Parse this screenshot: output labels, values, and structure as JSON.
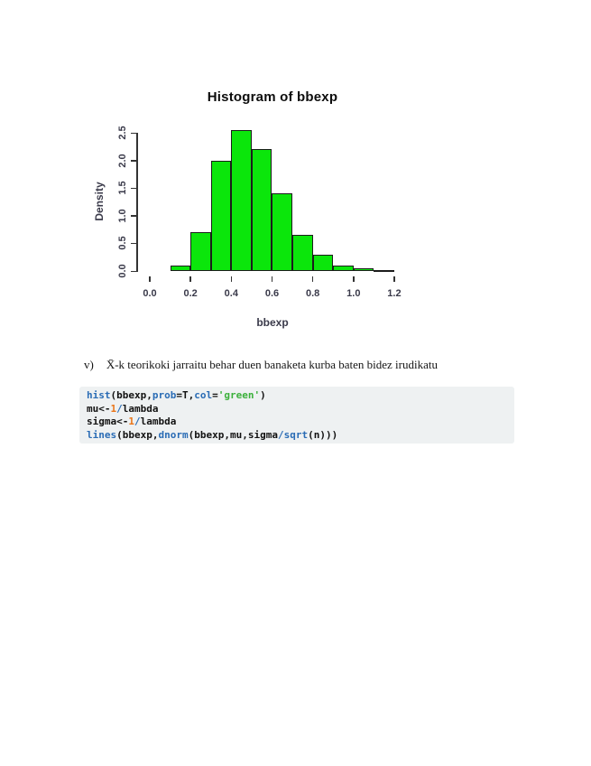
{
  "chart_data": {
    "type": "bar",
    "title": "Histogram of bbexp",
    "xlabel": "bbexp",
    "ylabel": "Density",
    "xlim": [
      0.0,
      1.2
    ],
    "ylim": [
      0.0,
      2.5
    ],
    "bin_width": 0.1,
    "bin_starts": [
      0.1,
      0.2,
      0.3,
      0.4,
      0.5,
      0.6,
      0.7,
      0.8,
      0.9,
      1.0,
      1.1
    ],
    "values": [
      0.1,
      0.7,
      2.0,
      2.55,
      2.2,
      1.4,
      0.65,
      0.3,
      0.1,
      0.05,
      0.02
    ],
    "x_tick_labels": [
      "0.0",
      "0.2",
      "0.4",
      "0.6",
      "0.8",
      "1.0",
      "1.2"
    ],
    "x_tick_values": [
      0.0,
      0.2,
      0.4,
      0.6,
      0.8,
      1.0,
      1.2
    ],
    "y_tick_labels": [
      "0.0",
      "0.5",
      "1.0",
      "1.5",
      "2.0",
      "2.5"
    ],
    "y_tick_values": [
      0.0,
      0.5,
      1.0,
      1.5,
      2.0,
      2.5
    ],
    "legend": "none",
    "grid": false,
    "bar_fill": "#0BE60B",
    "bar_border": "#1c1c1c"
  },
  "question": {
    "label": "v)",
    "text": "X̄-k teorikoki jarraitu behar duen banaketa kurba baten bidez irudikatu"
  },
  "code_block": {
    "background": "#eef1f2",
    "token_colors": {
      "fn": "#2a6cb5",
      "num": "#ea7519",
      "str": "#3bb03b",
      "pl": "#111111"
    },
    "lines": [
      [
        {
          "t": "hist",
          "c": "fn"
        },
        {
          "t": "(bbexp,",
          "c": "pl"
        },
        {
          "t": "prob",
          "c": "fn"
        },
        {
          "t": "=T,",
          "c": "pl"
        },
        {
          "t": "col",
          "c": "fn"
        },
        {
          "t": "=",
          "c": "pl"
        },
        {
          "t": "'green'",
          "c": "str"
        },
        {
          "t": ")",
          "c": "pl"
        }
      ],
      [
        {
          "t": "mu<-",
          "c": "pl"
        },
        {
          "t": "1",
          "c": "num"
        },
        {
          "t": "/",
          "c": "fn"
        },
        {
          "t": "lambda",
          "c": "pl"
        }
      ],
      [
        {
          "t": "sigma<-",
          "c": "pl"
        },
        {
          "t": "1",
          "c": "num"
        },
        {
          "t": "/",
          "c": "fn"
        },
        {
          "t": "lambda",
          "c": "pl"
        }
      ],
      [
        {
          "t": "lines",
          "c": "fn"
        },
        {
          "t": "(bbexp,",
          "c": "pl"
        },
        {
          "t": "dnorm",
          "c": "fn"
        },
        {
          "t": "(bbexp,mu,sigma",
          "c": "pl"
        },
        {
          "t": "/",
          "c": "fn"
        },
        {
          "t": "sqrt",
          "c": "fn"
        },
        {
          "t": "(n)))",
          "c": "pl"
        }
      ]
    ]
  }
}
